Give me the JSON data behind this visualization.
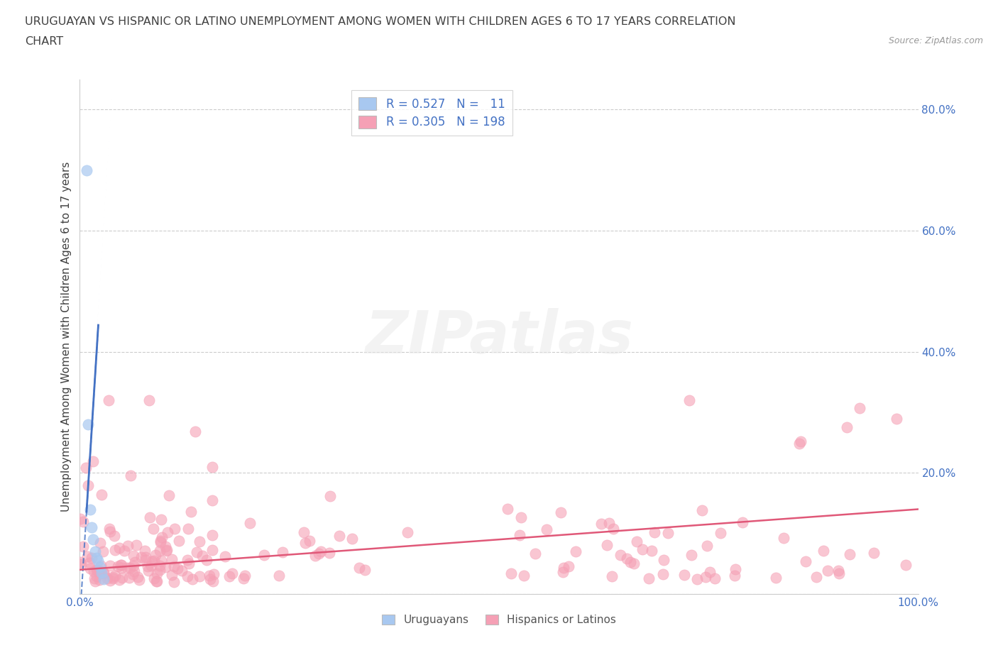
{
  "title_line1": "URUGUAYAN VS HISPANIC OR LATINO UNEMPLOYMENT AMONG WOMEN WITH CHILDREN AGES 6 TO 17 YEARS CORRELATION",
  "title_line2": "CHART",
  "source": "Source: ZipAtlas.com",
  "ylabel": "Unemployment Among Women with Children Ages 6 to 17 years",
  "xlim": [
    0.0,
    1.0
  ],
  "ylim": [
    0.0,
    0.85
  ],
  "xticks": [
    0.0,
    0.1,
    0.2,
    0.3,
    0.4,
    0.5,
    0.6,
    0.7,
    0.8,
    0.9,
    1.0
  ],
  "xticklabels": [
    "0.0%",
    "",
    "",
    "",
    "",
    "",
    "",
    "",
    "",
    "",
    "100.0%"
  ],
  "ytick_vals": [
    0.0,
    0.2,
    0.4,
    0.6,
    0.8
  ],
  "yticklabels_right": [
    "",
    "20.0%",
    "40.0%",
    "60.0%",
    "80.0%"
  ],
  "uruguayan_color": "#a8c8f0",
  "hispanic_color": "#f5a0b5",
  "trend_uruguayan_color": "#4472c4",
  "trend_hispanic_color": "#e05878",
  "title_color": "#404040",
  "source_color": "#999999",
  "axis_label_color": "#404040",
  "tick_color": "#4472c4",
  "grid_color": "#cccccc",
  "background_color": "#ffffff",
  "legend_items": [
    {
      "label": "R = 0.527   N =   11",
      "color": "#a8c8f0"
    },
    {
      "label": "R = 0.305   N = 198",
      "color": "#f5a0b5"
    }
  ],
  "bottom_legend_items": [
    {
      "label": "Uruguayans",
      "color": "#a8c8f0"
    },
    {
      "label": "Hispanics or Latinos",
      "color": "#f5a0b5"
    }
  ]
}
